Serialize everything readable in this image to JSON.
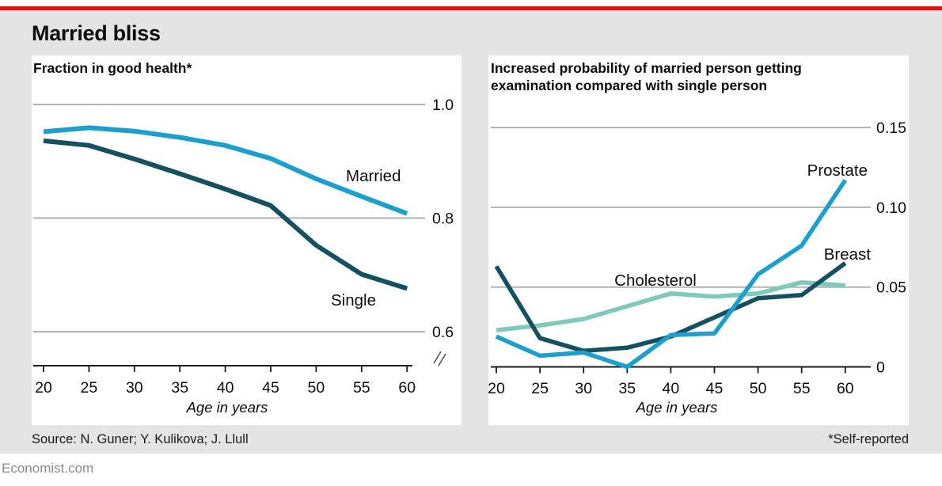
{
  "page": {
    "title": "Married bliss",
    "source": "Source: N. Guner; Y. Kulikova; J. Llull",
    "footnote": "*Self-reported",
    "brand": "Economist.com"
  },
  "colors": {
    "red": "#e3120b",
    "cyan": "#1c9fcd",
    "dark_teal": "#14505f",
    "pale_teal": "#7dc9ba",
    "grid": "#b3b3b3",
    "axis": "#1a1a1a",
    "card_bg": "#e4e4e4",
    "panel_bg": "#ffffff",
    "text": "#0d0d0d",
    "muted": "#8b8b8b"
  },
  "chart_data": [
    {
      "type": "line",
      "title": "Fraction in good health*",
      "xlabel": "Age in years",
      "x": [
        20,
        25,
        30,
        35,
        40,
        45,
        50,
        55,
        60
      ],
      "ylim": [
        0.6,
        1.0
      ],
      "yticks": [
        {
          "label": "1.0",
          "value": 1.0,
          "grid": true
        },
        {
          "label": "0.8",
          "value": 0.8,
          "grid": true
        },
        {
          "label": "0.6",
          "value": 0.6,
          "grid": true
        }
      ],
      "axis_break": true,
      "grid": true,
      "legend_position": "inline-labels",
      "series": [
        {
          "name": "Married",
          "color": "cyan",
          "values": [
            0.952,
            0.959,
            0.953,
            0.942,
            0.928,
            0.905,
            0.869,
            0.838,
            0.808
          ]
        },
        {
          "name": "Single",
          "color": "dark_teal",
          "values": [
            0.936,
            0.928,
            0.904,
            0.878,
            0.851,
            0.822,
            0.752,
            0.701,
            0.676
          ]
        }
      ]
    },
    {
      "type": "line",
      "title": "Increased probability of married person getting examination compared with single person",
      "title_lines": [
        "Increased probability of married person getting",
        "examination compared with single person"
      ],
      "xlabel": "Age in years",
      "x": [
        20,
        25,
        30,
        35,
        40,
        45,
        50,
        55,
        60
      ],
      "ylim": [
        0,
        0.15
      ],
      "yticks": [
        {
          "label": "0.15",
          "value": 0.15,
          "grid": true
        },
        {
          "label": "0.10",
          "value": 0.1,
          "grid": true
        },
        {
          "label": "0.05",
          "value": 0.05,
          "grid": true
        },
        {
          "label": "0",
          "value": 0,
          "grid": false
        }
      ],
      "axis_break": false,
      "grid": true,
      "legend_position": "inline-labels",
      "series": [
        {
          "name": "Prostate",
          "color": "cyan",
          "values": [
            0.019,
            0.007,
            0.009,
            0.0,
            0.02,
            0.021,
            0.058,
            0.076,
            0.117
          ]
        },
        {
          "name": "Breast",
          "color": "dark_teal",
          "values": [
            0.063,
            0.018,
            0.01,
            0.012,
            0.019,
            0.031,
            0.043,
            0.045,
            0.065
          ]
        },
        {
          "name": "Cholesterol",
          "color": "pale_teal",
          "values": [
            0.023,
            0.026,
            0.03,
            0.038,
            0.046,
            0.044,
            0.046,
            0.053,
            0.051
          ]
        }
      ]
    }
  ]
}
